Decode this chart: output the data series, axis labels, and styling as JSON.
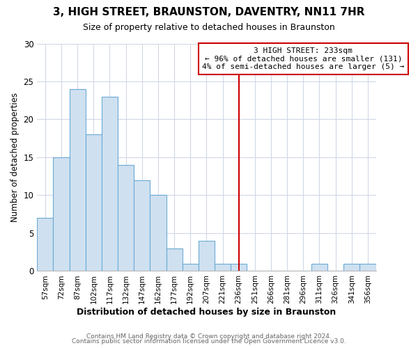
{
  "title": "3, HIGH STREET, BRAUNSTON, DAVENTRY, NN11 7HR",
  "subtitle": "Size of property relative to detached houses in Braunston",
  "xlabel": "Distribution of detached houses by size in Braunston",
  "ylabel": "Number of detached properties",
  "footer_lines": [
    "Contains HM Land Registry data © Crown copyright and database right 2024.",
    "Contains public sector information licensed under the Open Government Licence v3.0."
  ],
  "bin_labels": [
    "57sqm",
    "72sqm",
    "87sqm",
    "102sqm",
    "117sqm",
    "132sqm",
    "147sqm",
    "162sqm",
    "177sqm",
    "192sqm",
    "207sqm",
    "221sqm",
    "236sqm",
    "251sqm",
    "266sqm",
    "281sqm",
    "296sqm",
    "311sqm",
    "326sqm",
    "341sqm",
    "356sqm"
  ],
  "bar_values": [
    7,
    15,
    24,
    18,
    23,
    14,
    12,
    10,
    3,
    1,
    4,
    1,
    1,
    0,
    0,
    0,
    0,
    1,
    0,
    1,
    1
  ],
  "bar_color": "#cfe0f0",
  "bar_edge_color": "#6aaad4",
  "bar_edge_width": 0.8,
  "red_line_index": 12,
  "red_line_color": "#cc0000",
  "annotation_title": "3 HIGH STREET: 233sqm",
  "annotation_line1": "← 96% of detached houses are smaller (131)",
  "annotation_line2": "4% of semi-detached houses are larger (5) →",
  "annotation_box_color": "#ffffff",
  "annotation_box_edge": "#cc0000",
  "ylim": [
    0,
    30
  ],
  "yticks": [
    0,
    5,
    10,
    15,
    20,
    25,
    30
  ],
  "grid_color": "#d0d8e8",
  "background_color": "#ffffff"
}
